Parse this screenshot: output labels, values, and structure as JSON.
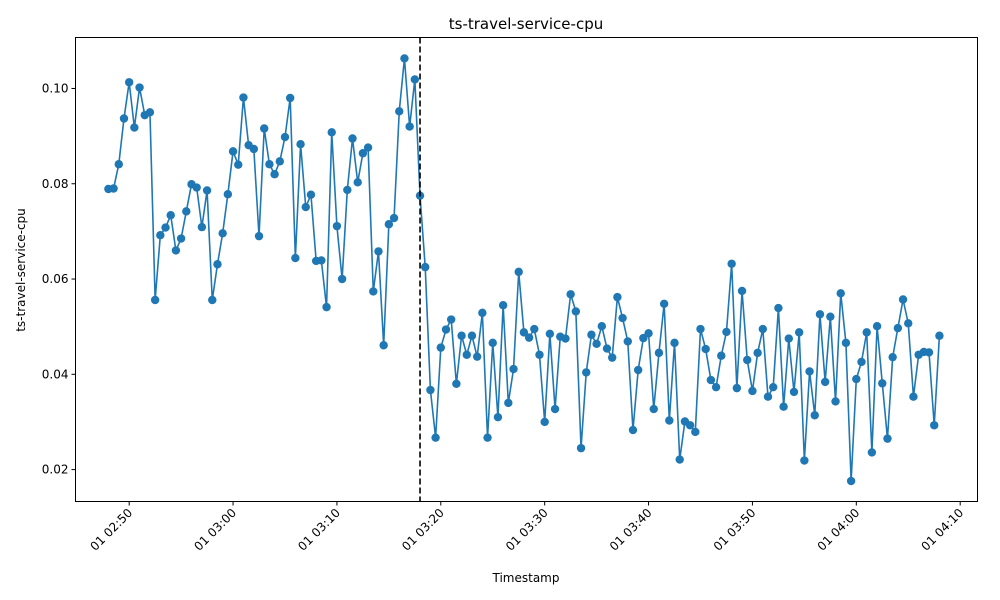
{
  "chart_data": {
    "type": "line",
    "title": "ts-travel-service-cpu",
    "xlabel": "Timestamp",
    "ylabel": "ts-travel-service-cpu",
    "xlim": [
      "2000-01-01T02:44:50",
      "2000-01-01T04:11:40"
    ],
    "ylim": [
      0.0133,
      0.1107
    ],
    "xticks": [
      {
        "t": "2000-01-01T02:50:00",
        "label": "01 02:50"
      },
      {
        "t": "2000-01-01T03:00:00",
        "label": "01 03:00"
      },
      {
        "t": "2000-01-01T03:10:00",
        "label": "01 03:10"
      },
      {
        "t": "2000-01-01T03:20:00",
        "label": "01 03:20"
      },
      {
        "t": "2000-01-01T03:30:00",
        "label": "01 03:30"
      },
      {
        "t": "2000-01-01T03:40:00",
        "label": "01 03:40"
      },
      {
        "t": "2000-01-01T03:50:00",
        "label": "01 03:50"
      },
      {
        "t": "2000-01-01T04:00:00",
        "label": "01 04:00"
      },
      {
        "t": "2000-01-01T04:10:00",
        "label": "01 04:10"
      }
    ],
    "yticks": [
      {
        "v": 0.02,
        "label": "0.02"
      },
      {
        "v": 0.04,
        "label": "0.04"
      },
      {
        "v": 0.06,
        "label": "0.06"
      },
      {
        "v": 0.08,
        "label": "0.08"
      },
      {
        "v": 0.1,
        "label": "0.10"
      }
    ],
    "vline": {
      "t": "2000-01-01T03:18:00",
      "style": "dashed",
      "color": "#000000"
    },
    "color": "#1f77b4",
    "grid": false,
    "series": [
      {
        "start": "2000-01-01T02:48:00",
        "step_seconds": 30,
        "values": [
          0.0789,
          0.079,
          0.0841,
          0.0937,
          0.1013,
          0.0918,
          0.1002,
          0.0944,
          0.095,
          0.0556,
          0.0692,
          0.0708,
          0.0734,
          0.066,
          0.0685,
          0.0742,
          0.0799,
          0.0792,
          0.0709,
          0.0786,
          0.0556,
          0.0631,
          0.0696,
          0.0778,
          0.0868,
          0.084,
          0.0981,
          0.0881,
          0.0873,
          0.069,
          0.0916,
          0.0841,
          0.082,
          0.0847,
          0.0898,
          0.098,
          0.0644,
          0.0883,
          0.0751,
          0.0777,
          0.0638,
          0.0639,
          0.0541,
          0.0908,
          0.0711,
          0.06,
          0.0787,
          0.0895,
          0.0803,
          0.0864,
          0.0876,
          0.0574,
          0.0658,
          0.0461,
          0.0715,
          0.0728,
          0.0952,
          0.1063,
          0.092,
          0.1019,
          0.0775,
          0.0625,
          0.0367,
          0.0267,
          0.0456,
          0.0494,
          0.0515,
          0.038,
          0.0481,
          0.0441,
          0.0481,
          0.0437,
          0.0529,
          0.0267,
          0.0466,
          0.031,
          0.0545,
          0.034,
          0.0411,
          0.0615,
          0.0488,
          0.0477,
          0.0495,
          0.0441,
          0.03,
          0.0485,
          0.0327,
          0.0479,
          0.0475,
          0.0568,
          0.0532,
          0.0245,
          0.0404,
          0.0483,
          0.0464,
          0.0501,
          0.0454,
          0.0435,
          0.0562,
          0.0518,
          0.0469,
          0.0283,
          0.0409,
          0.0476,
          0.0486,
          0.0327,
          0.0445,
          0.0548,
          0.0303,
          0.0466,
          0.0221,
          0.0301,
          0.0293,
          0.0279,
          0.0495,
          0.0453,
          0.0388,
          0.0373,
          0.0439,
          0.0489,
          0.0632,
          0.0371,
          0.0575,
          0.043,
          0.0365,
          0.0445,
          0.0495,
          0.0353,
          0.0373,
          0.0539,
          0.0332,
          0.0475,
          0.0363,
          0.0488,
          0.0219,
          0.0406,
          0.0314,
          0.0526,
          0.0384,
          0.0521,
          0.0343,
          0.057,
          0.0466,
          0.0176,
          0.039,
          0.0426,
          0.0488,
          0.0236,
          0.0501,
          0.0381,
          0.0265,
          0.0436,
          0.0497,
          0.0557,
          0.0507,
          0.0353,
          0.0441,
          0.0447,
          0.0446,
          0.0293,
          0.0481
        ]
      }
    ]
  }
}
